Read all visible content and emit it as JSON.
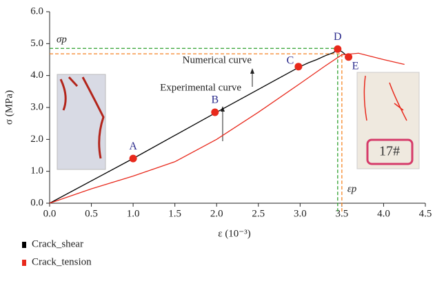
{
  "chart_data": {
    "type": "line",
    "ylabel": "σ (MPa)",
    "xlabel": "ε (10⁻³)",
    "xlim": [
      0,
      4.5
    ],
    "xticks": [
      {
        "value": 0,
        "label": "0.0"
      },
      0.5,
      {
        "value": 1,
        "label": "1.0"
      },
      1.5,
      {
        "value": 2,
        "label": "2.0"
      },
      2.5,
      {
        "value": 3,
        "label": "3.0"
      },
      3.5,
      {
        "value": 4,
        "label": "4.0"
      },
      4.5
    ],
    "ylim": [
      0,
      6
    ],
    "yticks": [
      {
        "value": 0,
        "label": "0.0"
      },
      {
        "value": 1,
        "label": "1.0"
      },
      {
        "value": 2,
        "label": "2.0"
      },
      {
        "value": 3,
        "label": "3.0"
      },
      {
        "value": 4,
        "label": "4.0"
      },
      {
        "value": 5,
        "label": "5.0"
      },
      {
        "value": 6,
        "label": "6.0"
      }
    ],
    "series": [
      {
        "name": "Numerical curve",
        "color": "#000000",
        "x": [
          0,
          1,
          2,
          3,
          3.1,
          3.2,
          3.3,
          3.4,
          3.45,
          3.5,
          3.57
        ],
        "values": [
          0,
          1.4,
          2.85,
          4.28,
          4.4,
          4.5,
          4.62,
          4.72,
          4.82,
          4.75,
          4.6
        ]
      },
      {
        "name": "Experimental curve",
        "color": "#e8291c",
        "x": [
          0,
          0.5,
          1,
          1.5,
          2,
          2.5,
          3,
          3.3,
          3.5,
          3.7,
          4,
          4.25
        ],
        "values": [
          0,
          0.45,
          0.85,
          1.3,
          2.0,
          2.85,
          3.75,
          4.3,
          4.65,
          4.7,
          4.5,
          4.35
        ]
      }
    ],
    "points": {
      "color": "#e8291c",
      "label_color": "#2b2b8c",
      "labels": [
        "A",
        "B",
        "C",
        "D",
        "E"
      ],
      "x": [
        1,
        1.98,
        2.98,
        3.45,
        3.58
      ],
      "values": [
        1.4,
        2.85,
        4.28,
        4.83,
        4.58
      ]
    },
    "reference_lines": [
      {
        "label": "σp",
        "x": 3.45,
        "y": 4.85,
        "color": "#2ca02c"
      },
      {
        "label": "εp",
        "x": 3.5,
        "y": 4.68,
        "color": "#f58220"
      }
    ],
    "legend": [
      {
        "name": "Crack_shear",
        "color": "#000000"
      },
      {
        "name": "Crack_tension",
        "color": "#e8291c"
      }
    ]
  }
}
